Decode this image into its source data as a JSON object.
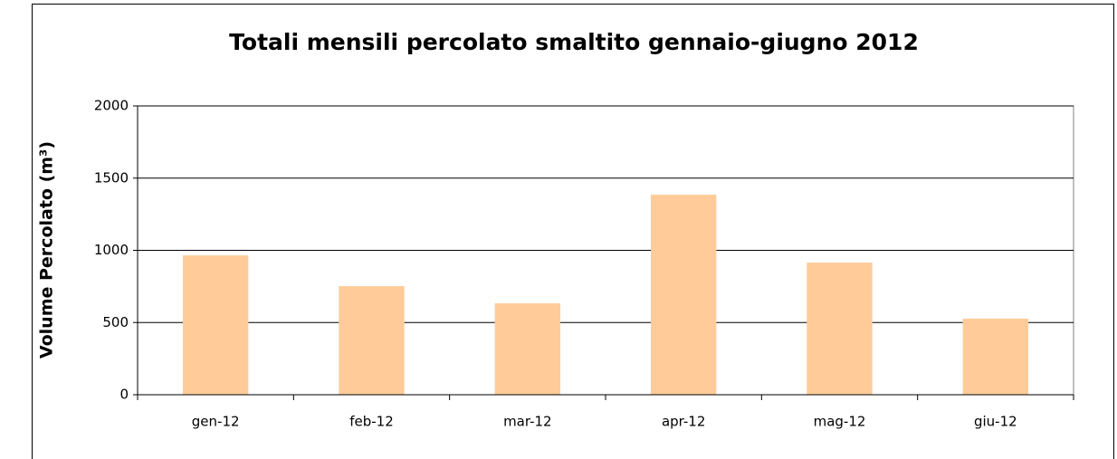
{
  "chart_data": {
    "type": "bar",
    "title": "Totali mensili percolato smaltito gennaio-giugno 2012",
    "y_label": "Volume Percolato (m³)",
    "categories": [
      "gen-12",
      "feb-12",
      "mar-12",
      "apr-12",
      "mag-12",
      "giu-12"
    ],
    "values": [
      965,
      752,
      633,
      1385,
      915,
      527
    ],
    "color": "#ffcc99",
    "ylim": [
      0,
      2000
    ],
    "yticks": [
      0,
      500,
      1000,
      1500,
      2000
    ],
    "grid": true
  }
}
